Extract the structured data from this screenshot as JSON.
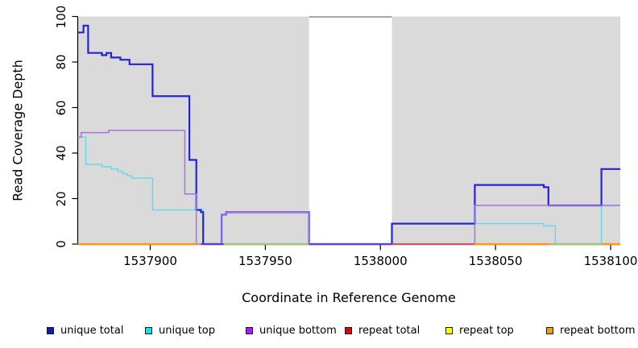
{
  "chart_data": {
    "type": "line",
    "subtype": "step-coverage",
    "title": "",
    "xlabel": "Coordinate in Reference Genome",
    "ylabel": "Read Coverage Depth",
    "xlim": [
      1537868.5,
      1538104.2
    ],
    "ylim": [
      0,
      100
    ],
    "x_ticks": [
      1537900,
      1537950,
      1538000,
      1538050,
      1538100
    ],
    "y_ticks": [
      0,
      20,
      40,
      60,
      80,
      100
    ],
    "grid": false,
    "legend_position": "bottom",
    "plot_background_color": "#DADADA",
    "masked_region": {
      "from": 1537969,
      "to": 1538005,
      "color": "#FFFFFF",
      "top_border_color": "#8C8C8C"
    },
    "series": [
      {
        "name": "repeat top",
        "color": "#FFFF00",
        "legend_color": "#FFFF00",
        "width": 1.3,
        "steps": [
          [
            1537868.5,
            0
          ]
        ]
      },
      {
        "name": "repeat total",
        "color": "#E80000",
        "legend_color": "#E80000",
        "width": 1.3,
        "steps": [
          [
            1537868.5,
            0
          ]
        ]
      },
      {
        "name": "repeat bottom",
        "color": "#FF9912",
        "legend_color": "#F5A000",
        "width": 2.2,
        "steps": [
          [
            1537868.5,
            0
          ]
        ]
      },
      {
        "name": "unique top",
        "color": "#5FD8E8",
        "legend_color": "#00E8F0",
        "width": 1.4,
        "steps": [
          [
            1537868.5,
            47
          ],
          [
            1537872,
            35
          ],
          [
            1537879,
            34
          ],
          [
            1537883,
            33
          ],
          [
            1537886,
            32
          ],
          [
            1537888,
            31
          ],
          [
            1537890,
            30
          ],
          [
            1537892,
            29
          ],
          [
            1537901,
            15
          ],
          [
            1537923,
            0
          ],
          [
            1538005,
            9
          ],
          [
            1538071,
            8
          ],
          [
            1538076,
            0
          ],
          [
            1538096,
            17
          ]
        ]
      },
      {
        "name": "unique total",
        "color": "#2424D6",
        "legend_color": "#1414CC",
        "width": 2.2,
        "steps": [
          [
            1537868.5,
            93
          ],
          [
            1537871,
            96
          ],
          [
            1537873,
            84
          ],
          [
            1537879,
            83
          ],
          [
            1537881,
            84
          ],
          [
            1537883,
            82
          ],
          [
            1537887,
            81
          ],
          [
            1537891,
            79
          ],
          [
            1537901,
            65
          ],
          [
            1537917,
            37
          ],
          [
            1537920,
            15
          ],
          [
            1537922,
            14
          ],
          [
            1537923,
            0
          ],
          [
            1537931,
            13
          ],
          [
            1537933,
            14
          ],
          [
            1537969,
            0
          ],
          [
            1538005,
            9
          ],
          [
            1538041,
            26
          ],
          [
            1538071,
            25
          ],
          [
            1538073,
            17
          ],
          [
            1538096,
            33
          ]
        ]
      },
      {
        "name": "unique bottom",
        "color": "#A873E0",
        "legend_color": "#A020F0",
        "width": 1.5,
        "steps": [
          [
            1537868.5,
            47
          ],
          [
            1537870,
            49
          ],
          [
            1537882,
            50
          ],
          [
            1537915,
            22
          ],
          [
            1537920,
            0
          ],
          [
            1537931,
            13
          ],
          [
            1537933,
            14
          ],
          [
            1537969,
            0
          ],
          [
            1538041,
            17
          ]
        ]
      }
    ],
    "zero_line_segments": [
      {
        "from": 1537870,
        "to": 1537920,
        "color": "#FF9912",
        "width": 2.2
      },
      {
        "from": 1537920,
        "to": 1537922,
        "color": "#D98CC3",
        "width": 1.8
      },
      {
        "from": 1537922,
        "to": 1537932,
        "color": "#4B44D8",
        "width": 1.8
      },
      {
        "from": 1537932,
        "to": 1537969,
        "color": "#8FCE8F",
        "width": 1.6
      },
      {
        "from": 1537969,
        "to": 1538005,
        "color": "#5A46D0",
        "width": 1.8
      },
      {
        "from": 1538005,
        "to": 1538041,
        "color": "#C9506E",
        "width": 1.8
      },
      {
        "from": 1538041,
        "to": 1538073,
        "color": "#FF9912",
        "width": 2.2
      },
      {
        "from": 1538073,
        "to": 1538096,
        "color": "#8FCE8F",
        "width": 1.6
      },
      {
        "from": 1538096,
        "to": 1538104.2,
        "color": "#FF9912",
        "width": 2.2
      }
    ]
  },
  "legend": {
    "items": [
      {
        "label": "unique total",
        "color": "#1414CC"
      },
      {
        "label": "unique top",
        "color": "#00E8F0"
      },
      {
        "label": "unique bottom",
        "color": "#A020F0"
      },
      {
        "label": "repeat total",
        "color": "#E80000"
      },
      {
        "label": "repeat top",
        "color": "#FFFF00"
      },
      {
        "label": "repeat bottom",
        "color": "#F5A000"
      }
    ]
  }
}
